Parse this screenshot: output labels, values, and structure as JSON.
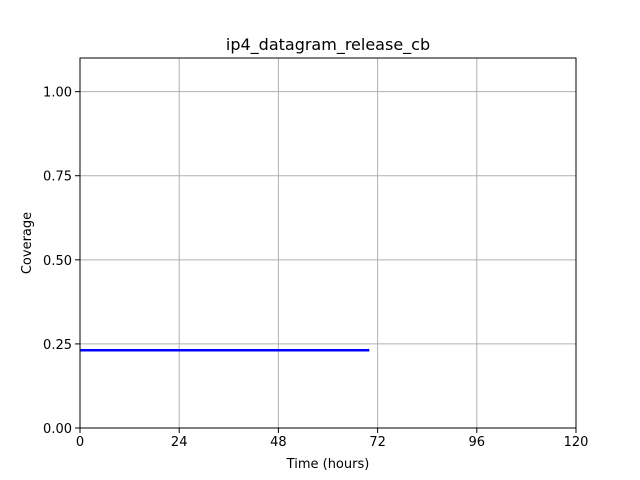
{
  "chart_data": {
    "type": "line",
    "title": "ip4_datagram_release_cb",
    "xlabel": "Time (hours)",
    "ylabel": "Coverage",
    "xlim": [
      0,
      120
    ],
    "ylim": [
      0,
      1.1
    ],
    "xticks": [
      0,
      24,
      48,
      72,
      96,
      120
    ],
    "xtick_labels": [
      "0",
      "24",
      "48",
      "72",
      "96",
      "120"
    ],
    "yticks": [
      0,
      0.25,
      0.5,
      0.75,
      1.0
    ],
    "ytick_labels": [
      "0.00",
      "0.25",
      "0.50",
      "0.75",
      "1.00"
    ],
    "grid": true,
    "series": [
      {
        "color": "#0000ff",
        "x": [
          0,
          70
        ],
        "y": [
          0.231,
          0.231
        ]
      }
    ]
  }
}
